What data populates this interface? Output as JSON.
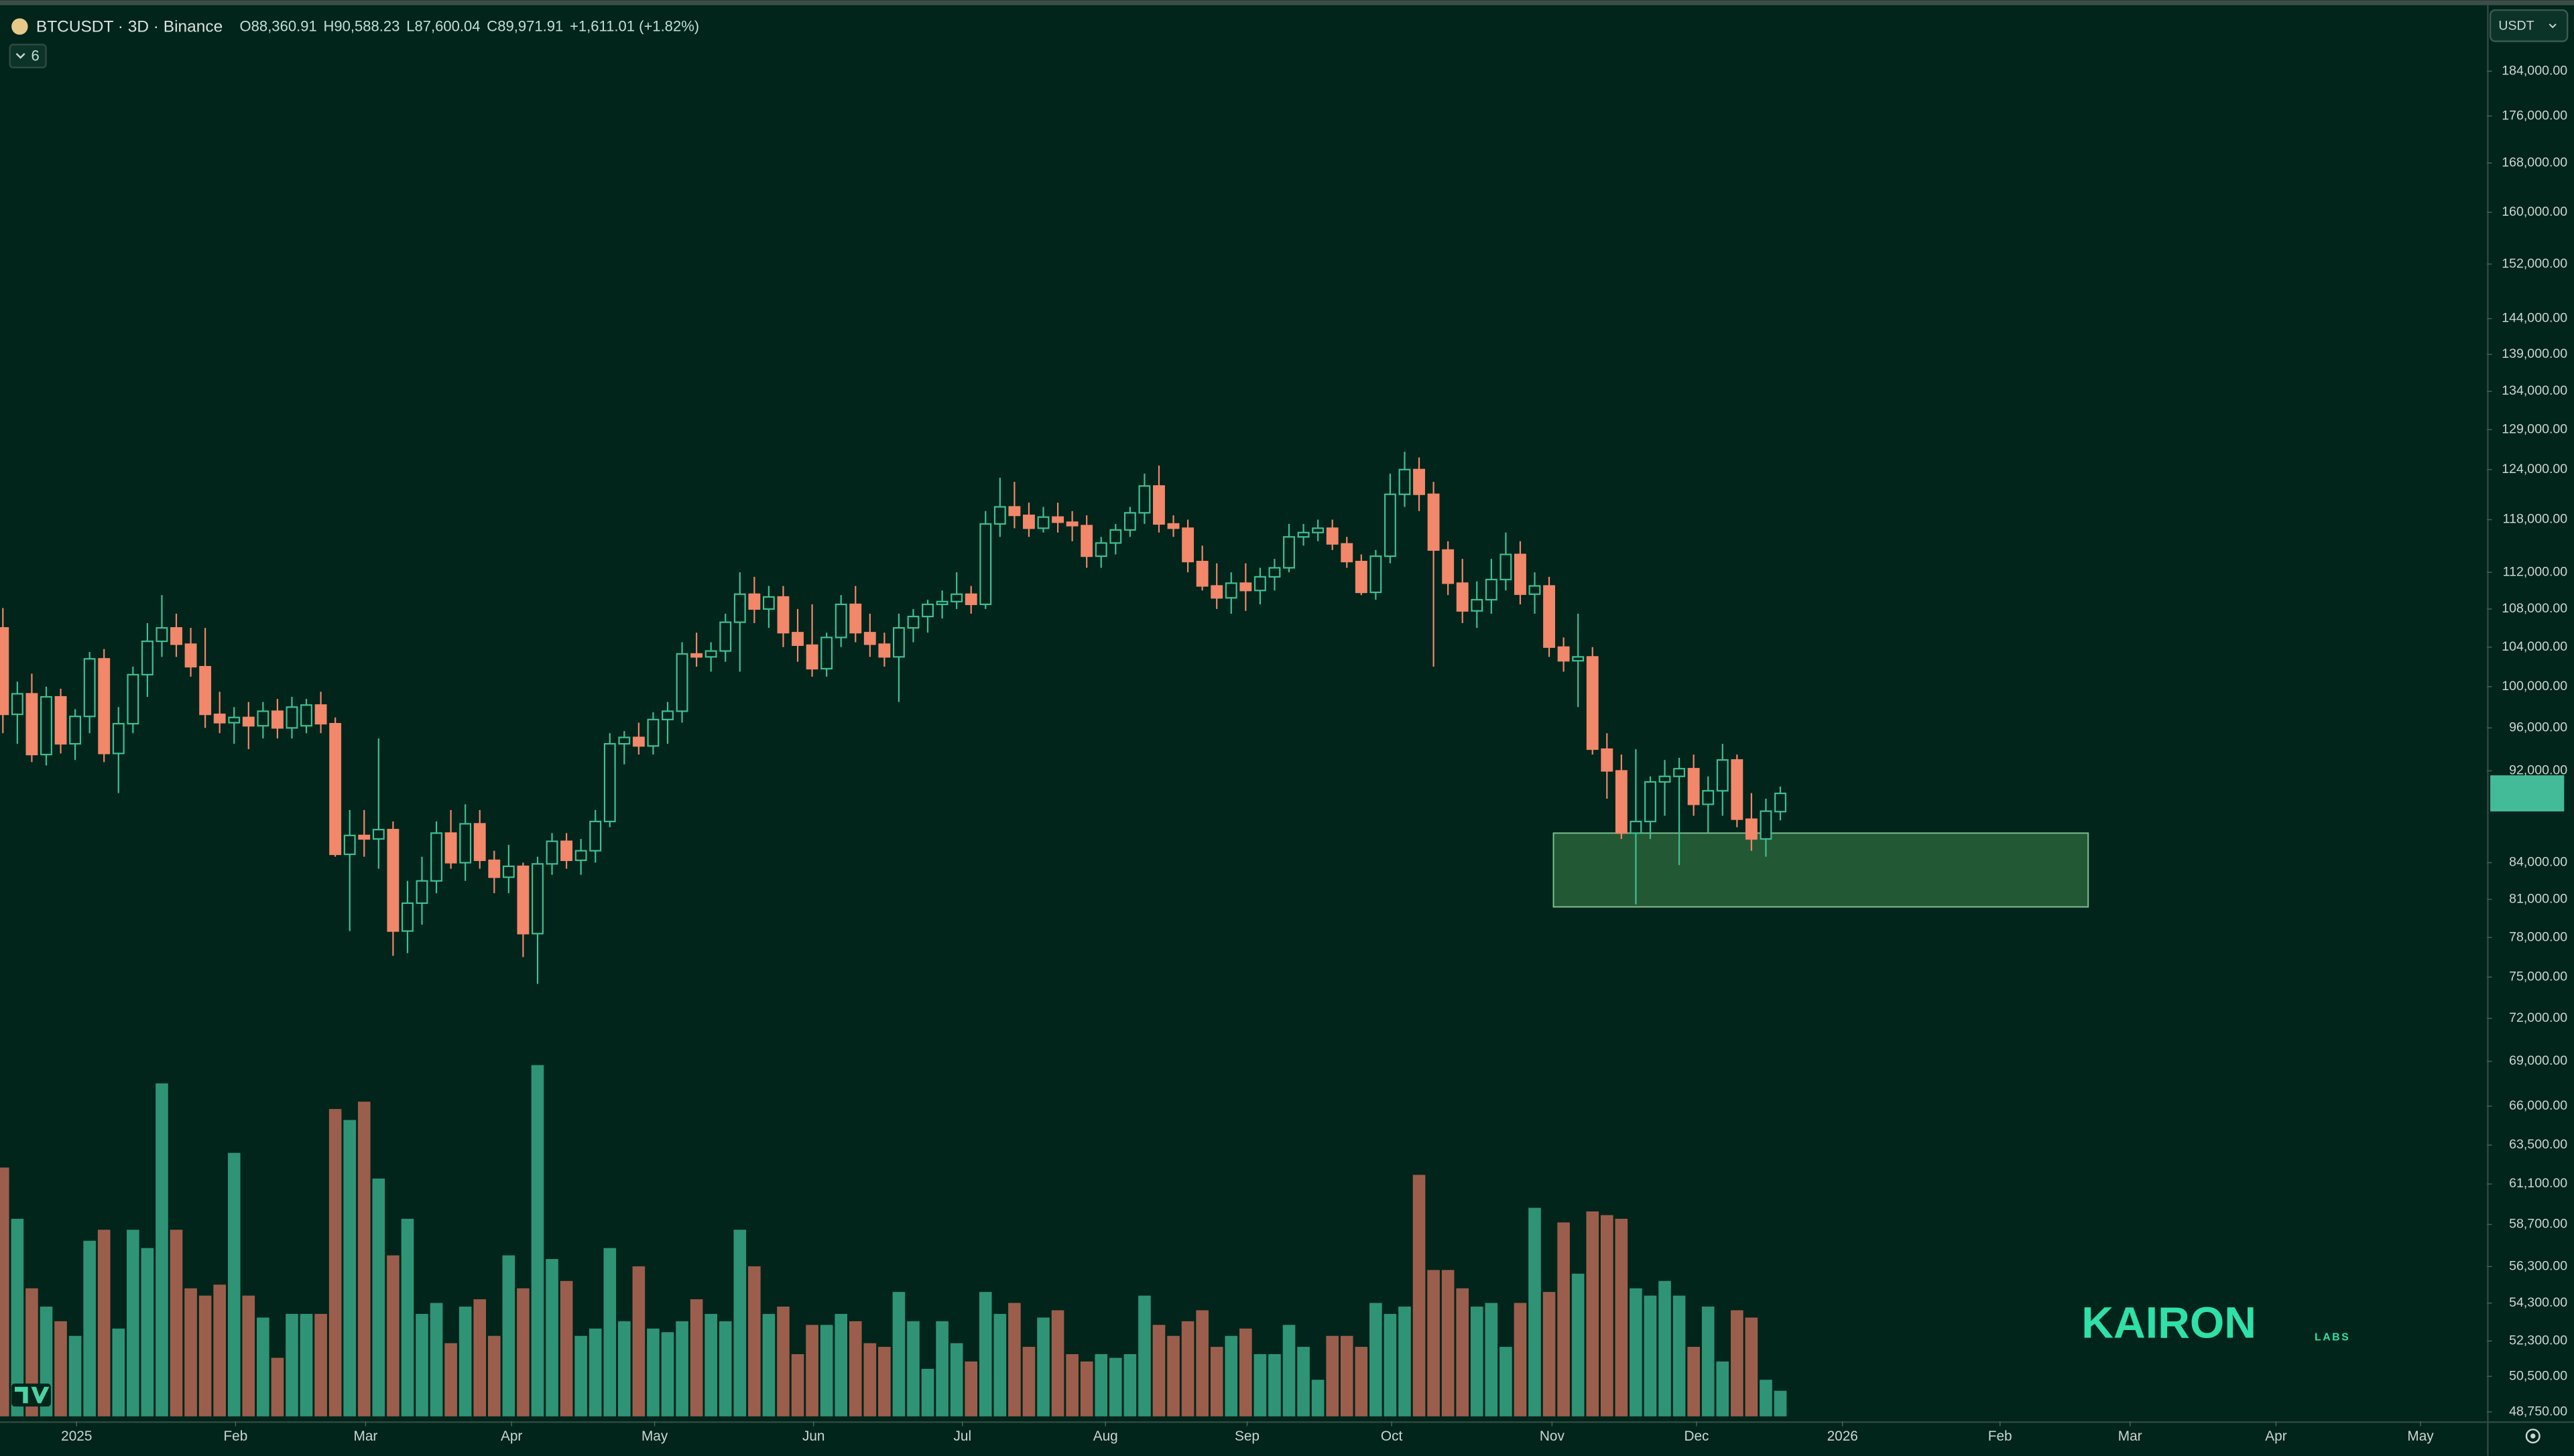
{
  "chart_data": {
    "type": "candlestick",
    "symbol": "BTCUSDT · 3D · Binance",
    "header_values": [
      "O88,360.91",
      "H90,588.23",
      "L87,600.04",
      "C89,971.91",
      "+1,611.01 (+1.82%)"
    ],
    "badge": "6",
    "currency": "USDT",
    "log_scale": true,
    "up_color": "#3fbf93",
    "down_color": "#f2876a",
    "volume_up_color": "#2f9476",
    "volume_down_color": "#9c5e4c",
    "zone_color": "#2f6a3f",
    "xlim": [
      -0.2,
      171.9
    ],
    "xticks": [
      {
        "value": 5.1,
        "label": "2025"
      },
      {
        "value": 16.1,
        "label": "Feb"
      },
      {
        "value": 25.1,
        "label": "Mar"
      },
      {
        "value": 35.2,
        "label": "Apr"
      },
      {
        "value": 45.1,
        "label": "May"
      },
      {
        "value": 56.1,
        "label": "Jun"
      },
      {
        "value": 66.4,
        "label": "Jul"
      },
      {
        "value": 76.3,
        "label": "Aug"
      },
      {
        "value": 86.1,
        "label": "Sep"
      },
      {
        "value": 96.1,
        "label": "Oct"
      },
      {
        "value": 107.2,
        "label": "Nov"
      },
      {
        "value": 117.2,
        "label": "Dec"
      },
      {
        "value": 127.3,
        "label": "2026"
      },
      {
        "value": 138.2,
        "label": "Feb"
      },
      {
        "value": 147.2,
        "label": "Mar"
      },
      {
        "value": 157.3,
        "label": "Apr"
      },
      {
        "value": 167.3,
        "label": "May"
      }
    ],
    "ylim": [
      48300,
      195800
    ],
    "yticks": [
      {
        "value": 184000,
        "label": "184,000.00"
      },
      {
        "value": 176000,
        "label": "176,000.00"
      },
      {
        "value": 168000,
        "label": "168,000.00"
      },
      {
        "value": 160000,
        "label": "160,000.00"
      },
      {
        "value": 152000,
        "label": "152,000.00"
      },
      {
        "value": 144000,
        "label": "144,000.00"
      },
      {
        "value": 139000,
        "label": "139,000.00"
      },
      {
        "value": 134000,
        "label": "134,000.00"
      },
      {
        "value": 129000,
        "label": "129,000.00"
      },
      {
        "value": 124000,
        "label": "124,000.00"
      },
      {
        "value": 118000,
        "label": "118,000.00"
      },
      {
        "value": 112000,
        "label": "112,000.00"
      },
      {
        "value": 108000,
        "label": "108,000.00"
      },
      {
        "value": 104000,
        "label": "104,000.00"
      },
      {
        "value": 100000,
        "label": "100,000.00"
      },
      {
        "value": 96000,
        "label": "96,000.00"
      },
      {
        "value": 92000,
        "label": "92,000.00"
      },
      {
        "value": 84000,
        "label": "84,000.00"
      },
      {
        "value": 81000,
        "label": "81,000.00"
      },
      {
        "value": 78000,
        "label": "78,000.00"
      },
      {
        "value": 75000,
        "label": "75,000.00"
      },
      {
        "value": 72000,
        "label": "72,000.00"
      },
      {
        "value": 69000,
        "label": "69,000.00"
      },
      {
        "value": 66000,
        "label": "66,000.00"
      },
      {
        "value": 63500,
        "label": "63,500.00"
      },
      {
        "value": 61100,
        "label": "61,100.00"
      },
      {
        "value": 58700,
        "label": "58,700.00"
      },
      {
        "value": 56300,
        "label": "56,300.00"
      },
      {
        "value": 54300,
        "label": "54,300.00"
      },
      {
        "value": 52300,
        "label": "52,300.00"
      },
      {
        "value": 50500,
        "label": "50,500.00"
      },
      {
        "value": 48750,
        "label": "48,750.00"
      }
    ],
    "zone": {
      "x": [
        107.3,
        144.3
      ],
      "y": [
        80400,
        86500
      ]
    },
    "candles": [
      [
        106000,
        108100,
        95500,
        97300
      ],
      [
        97300,
        100500,
        94500,
        99300
      ],
      [
        99300,
        101300,
        92800,
        93500
      ],
      [
        93500,
        100000,
        92500,
        99000
      ],
      [
        99000,
        99800,
        93600,
        94500
      ],
      [
        94500,
        97800,
        93000,
        97100
      ],
      [
        97100,
        103500,
        95500,
        102800
      ],
      [
        102800,
        103800,
        92800,
        93600
      ],
      [
        93600,
        98000,
        90000,
        96400
      ],
      [
        96400,
        102000,
        95500,
        101200
      ],
      [
        101200,
        106500,
        99000,
        104600
      ],
      [
        104600,
        109500,
        103000,
        106000
      ],
      [
        106000,
        107500,
        103000,
        104300
      ],
      [
        104300,
        106000,
        101000,
        102000
      ],
      [
        102000,
        106000,
        96000,
        97300
      ],
      [
        97300,
        99500,
        95500,
        96500
      ],
      [
        96500,
        98000,
        94500,
        97000
      ],
      [
        97000,
        98500,
        94000,
        96200
      ],
      [
        96200,
        98500,
        95000,
        97600
      ],
      [
        97600,
        98800,
        95000,
        96000
      ],
      [
        96000,
        99000,
        95000,
        98000
      ],
      [
        96200,
        98800,
        95500,
        98200
      ],
      [
        98200,
        99500,
        95500,
        96400
      ],
      [
        96400,
        97000,
        84500,
        84700
      ],
      [
        84700,
        88500,
        78500,
        86300
      ],
      [
        86300,
        88500,
        84500,
        86000
      ],
      [
        86000,
        95000,
        83500,
        86800
      ],
      [
        86800,
        87500,
        76600,
        78500
      ],
      [
        78500,
        82500,
        76800,
        80700
      ],
      [
        80700,
        84500,
        79000,
        82500
      ],
      [
        82500,
        87500,
        81500,
        86500
      ],
      [
        86500,
        88500,
        83500,
        84000
      ],
      [
        84000,
        89000,
        82500,
        87300
      ],
      [
        87300,
        88500,
        83500,
        84200
      ],
      [
        84200,
        85000,
        81500,
        82800
      ],
      [
        82800,
        85500,
        81500,
        83700
      ],
      [
        83700,
        84000,
        76500,
        78300
      ],
      [
        78300,
        84500,
        74500,
        83900
      ],
      [
        83900,
        86500,
        83000,
        85800
      ],
      [
        85800,
        86500,
        83500,
        84200
      ],
      [
        84200,
        86000,
        83000,
        85000
      ],
      [
        85000,
        88500,
        84000,
        87500
      ],
      [
        87500,
        95500,
        87000,
        94500
      ],
      [
        94500,
        95700,
        92600,
        95100
      ],
      [
        95100,
        96500,
        93500,
        94300
      ],
      [
        94300,
        97500,
        93500,
        96800
      ],
      [
        96800,
        98500,
        94500,
        97600
      ],
      [
        97600,
        104500,
        96500,
        103300
      ],
      [
        103300,
        105500,
        102000,
        103000
      ],
      [
        103000,
        104500,
        101500,
        103600
      ],
      [
        103600,
        107500,
        102500,
        106600
      ],
      [
        106600,
        112000,
        101500,
        109600
      ],
      [
        109600,
        111500,
        106500,
        108000
      ],
      [
        108000,
        110500,
        106000,
        109300
      ],
      [
        109300,
        110500,
        104000,
        105500
      ],
      [
        105500,
        108000,
        102500,
        104200
      ],
      [
        104200,
        108500,
        101000,
        101800
      ],
      [
        101800,
        105500,
        101000,
        105000
      ],
      [
        105000,
        109500,
        104000,
        108500
      ],
      [
        108500,
        110500,
        104500,
        105500
      ],
      [
        105500,
        107500,
        103000,
        104300
      ],
      [
        104300,
        105500,
        102000,
        103000
      ],
      [
        103000,
        107500,
        98500,
        106000
      ],
      [
        106000,
        108000,
        104500,
        107200
      ],
      [
        107200,
        109000,
        105500,
        108500
      ],
      [
        108500,
        110000,
        107000,
        108800
      ],
      [
        108800,
        112000,
        108000,
        109600
      ],
      [
        109600,
        110500,
        107500,
        108500
      ],
      [
        108500,
        119000,
        108000,
        117500
      ],
      [
        117500,
        123000,
        116000,
        119500
      ],
      [
        119500,
        122500,
        117000,
        118500
      ],
      [
        118500,
        120000,
        116000,
        117000
      ],
      [
        117000,
        119500,
        116500,
        118300
      ],
      [
        118300,
        120000,
        116500,
        117700
      ],
      [
        117700,
        119000,
        115500,
        117300
      ],
      [
        117300,
        118500,
        112500,
        113800
      ],
      [
        113800,
        116000,
        112500,
        115300
      ],
      [
        115300,
        117500,
        114000,
        116800
      ],
      [
        116800,
        119500,
        116000,
        118800
      ],
      [
        118800,
        123500,
        117500,
        122000
      ],
      [
        122000,
        124500,
        116500,
        117500
      ],
      [
        117500,
        118500,
        116000,
        117000
      ],
      [
        117000,
        118000,
        112000,
        113200
      ],
      [
        113200,
        115000,
        110000,
        110500
      ],
      [
        110500,
        113000,
        108000,
        109200
      ],
      [
        109200,
        112000,
        107500,
        110800
      ],
      [
        110800,
        113000,
        107800,
        110000
      ],
      [
        110000,
        112500,
        108500,
        111500
      ],
      [
        111500,
        113500,
        110000,
        112500
      ],
      [
        112500,
        117500,
        112000,
        116000
      ],
      [
        116000,
        117500,
        115000,
        116500
      ],
      [
        116500,
        118000,
        115500,
        117000
      ],
      [
        117000,
        118000,
        114500,
        115200
      ],
      [
        115200,
        116000,
        112500,
        113200
      ],
      [
        113200,
        114000,
        109500,
        109800
      ],
      [
        109800,
        114500,
        109000,
        113800
      ],
      [
        113800,
        123500,
        113000,
        121000
      ],
      [
        121000,
        126200,
        119500,
        124000
      ],
      [
        124000,
        125500,
        119000,
        121000
      ],
      [
        121000,
        122500,
        102000,
        114500
      ],
      [
        114500,
        115500,
        109500,
        110800
      ],
      [
        110800,
        113500,
        106500,
        107800
      ],
      [
        107800,
        111000,
        106000,
        109000
      ],
      [
        109000,
        113500,
        107500,
        111200
      ],
      [
        111200,
        116500,
        110000,
        114000
      ],
      [
        114000,
        115500,
        108500,
        109600
      ],
      [
        109600,
        112000,
        107500,
        110500
      ],
      [
        110500,
        111500,
        103000,
        104000
      ],
      [
        104000,
        105000,
        101500,
        102600
      ],
      [
        102600,
        107500,
        98000,
        103000
      ],
      [
        103000,
        104000,
        93500,
        94000
      ],
      [
        94000,
        95500,
        89500,
        92000
      ],
      [
        92000,
        93500,
        86000,
        86500
      ],
      [
        86500,
        94000,
        80600,
        87500
      ],
      [
        87500,
        91500,
        86000,
        91000
      ],
      [
        91000,
        93000,
        88000,
        91500
      ],
      [
        91500,
        93200,
        83800,
        92200
      ],
      [
        92200,
        93500,
        88000,
        89000
      ],
      [
        89000,
        91500,
        86500,
        90200
      ],
      [
        90200,
        94500,
        88000,
        93000
      ],
      [
        93000,
        93500,
        87000,
        87700
      ],
      [
        87700,
        90000,
        85000,
        86000
      ],
      [
        86000,
        89500,
        84500,
        88400
      ],
      [
        88360.91,
        90588.23,
        87600.04,
        89971.91
      ]
    ],
    "volume": {
      "ylim": [
        0,
        100
      ],
      "values": [
        68,
        54,
        35,
        30,
        26,
        22,
        48,
        51,
        24,
        51,
        46,
        91,
        51,
        35,
        33,
        36,
        72,
        33,
        27,
        16,
        28,
        28,
        28,
        84,
        81,
        86,
        65,
        44,
        54,
        28,
        31,
        20,
        30,
        32,
        22,
        44,
        35,
        96,
        43,
        37,
        22,
        24,
        46,
        26,
        41,
        24,
        23,
        26,
        32,
        28,
        26,
        51,
        41,
        28,
        30,
        17,
        25,
        25,
        28,
        26,
        20,
        19,
        34,
        26,
        13,
        26,
        20,
        15,
        34,
        28,
        31,
        19,
        27,
        29,
        17,
        15,
        17,
        16,
        17,
        33,
        25,
        22,
        26,
        29,
        19,
        22,
        24,
        17,
        17,
        25,
        19,
        10,
        22,
        22,
        19,
        31,
        28,
        30,
        66,
        40,
        40,
        35,
        30,
        31,
        19,
        31,
        57,
        34,
        53,
        39,
        56,
        55,
        54,
        35,
        33,
        37,
        33,
        19,
        30,
        15,
        29,
        27,
        10,
        7
      ]
    }
  },
  "logo": {
    "name": "KAIRON",
    "sub": "LABS"
  }
}
